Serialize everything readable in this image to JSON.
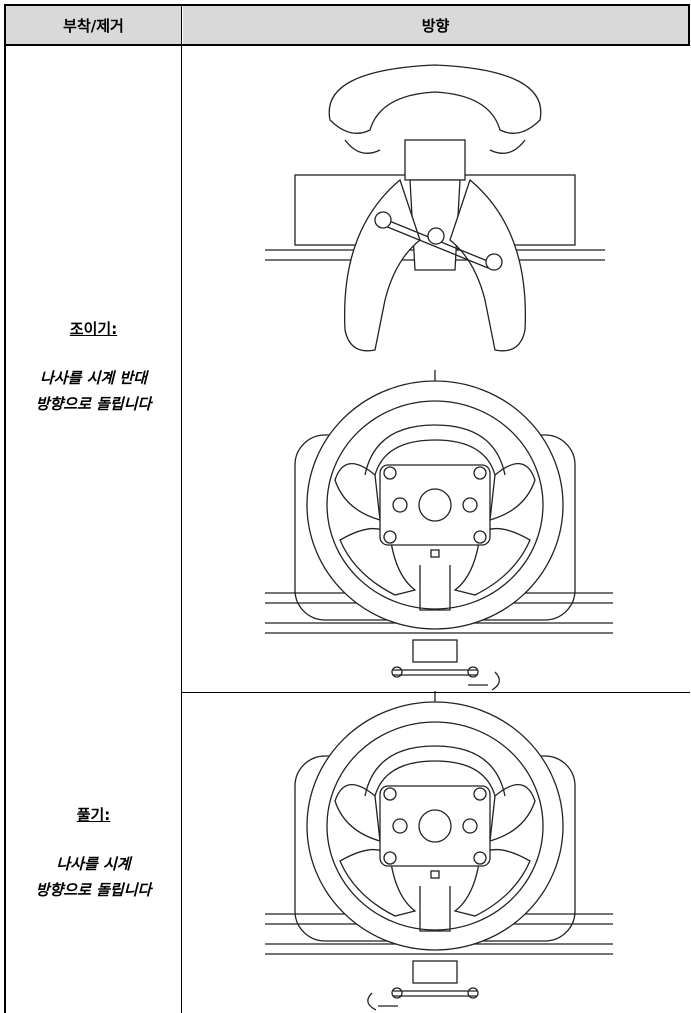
{
  "header": {
    "col1": "부착/제거",
    "col2": "방향"
  },
  "rows": [
    {
      "action": "조이기:",
      "instruction_lines": [
        "나사를 시계 반대",
        "방향으로 돌립니다"
      ]
    },
    {
      "action": "풀기:",
      "instruction_lines": [
        "나사를 시계",
        "방향으로 돌립니다"
      ]
    }
  ]
}
